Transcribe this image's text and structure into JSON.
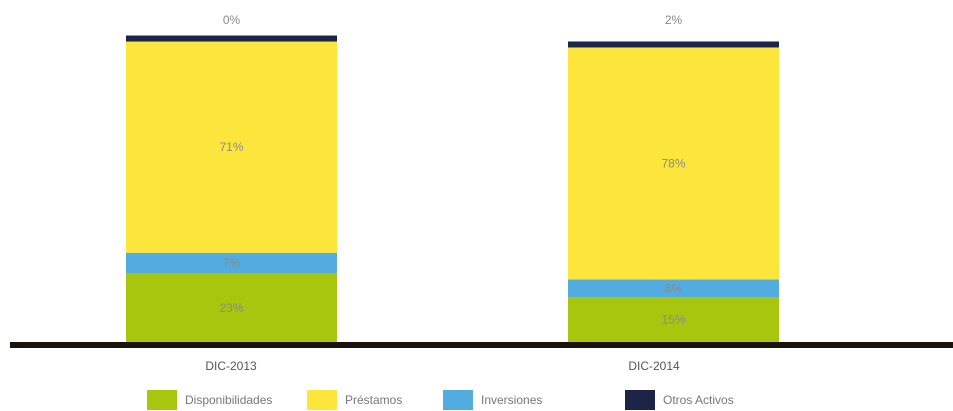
{
  "chart_data": {
    "type": "bar",
    "stacked": true,
    "categories": [
      "DIC-2013",
      "DIC-2014"
    ],
    "series": [
      {
        "name": "Disponibilidades",
        "color": "#a8c60d",
        "values": [
          23,
          15
        ],
        "labels": [
          "23%",
          "15%"
        ]
      },
      {
        "name": "Inversiones",
        "color": "#52ace0",
        "values": [
          7,
          6
        ],
        "labels": [
          "7%",
          "6%"
        ]
      },
      {
        "name": "Préstamos",
        "color": "#fde63b",
        "values": [
          71,
          78
        ],
        "labels": [
          "71%",
          "78%"
        ]
      },
      {
        "name": "Otros Activos",
        "color": "#1c2447",
        "values": [
          0,
          2
        ],
        "labels": [
          "0%",
          "2%"
        ]
      }
    ],
    "ylim": [
      0,
      101
    ],
    "grid": false,
    "legend_position": "bottom",
    "legend_order": [
      "Disponibilidades",
      "Préstamos",
      "Inversiones",
      "Otros Activos"
    ]
  }
}
